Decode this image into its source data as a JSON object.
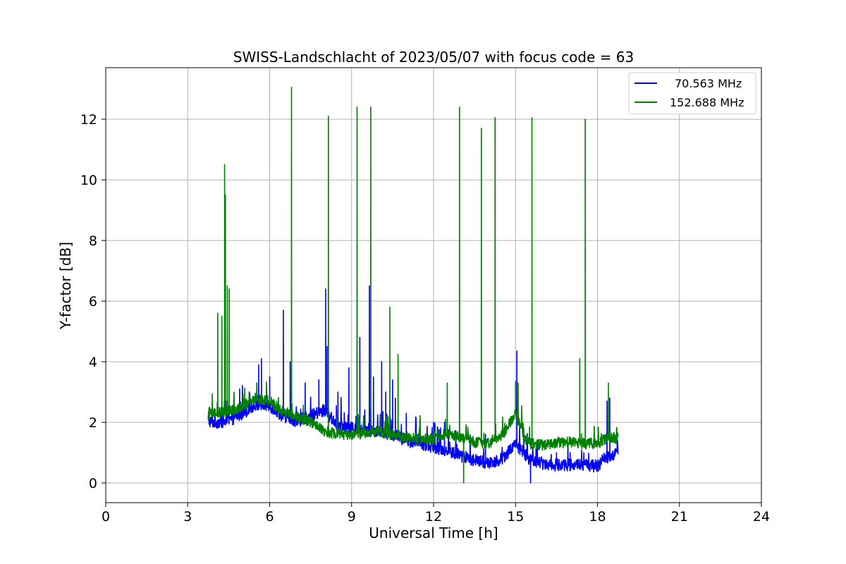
{
  "chart_data": {
    "type": "line",
    "title": "SWISS-Landschlacht of 2023/05/07 with focus code = 63",
    "xlabel": "Universal Time [h]",
    "ylabel": "Y-factor [dB]",
    "xlim": [
      0,
      24
    ],
    "ylim": [
      -0.65,
      13.7
    ],
    "xticks": [
      0,
      3,
      6,
      9,
      12,
      15,
      18,
      21,
      24
    ],
    "yticks": [
      0,
      2,
      4,
      6,
      8,
      10,
      12
    ],
    "grid": true,
    "legend_position": "top-right",
    "series": [
      {
        "name": "70.563 MHz",
        "color": "#0000ff",
        "baseline": [
          [
            3.75,
            2.05
          ],
          [
            4.0,
            2.0
          ],
          [
            4.5,
            2.05
          ],
          [
            5.0,
            2.3
          ],
          [
            5.5,
            2.6
          ],
          [
            6.0,
            2.55
          ],
          [
            6.5,
            2.2
          ],
          [
            7.0,
            2.05
          ],
          [
            7.5,
            2.2
          ],
          [
            8.0,
            2.4
          ],
          [
            8.5,
            1.9
          ],
          [
            9.0,
            1.8
          ],
          [
            9.5,
            1.8
          ],
          [
            10.0,
            1.7
          ],
          [
            10.5,
            1.6
          ],
          [
            11.0,
            1.4
          ],
          [
            11.5,
            1.3
          ],
          [
            12.0,
            1.2
          ],
          [
            12.5,
            1.05
          ],
          [
            13.0,
            0.9
          ],
          [
            13.5,
            0.75
          ],
          [
            14.0,
            0.65
          ],
          [
            14.5,
            0.8
          ],
          [
            15.0,
            1.3
          ],
          [
            15.5,
            0.8
          ],
          [
            16.0,
            0.65
          ],
          [
            16.5,
            0.6
          ],
          [
            17.0,
            0.6
          ],
          [
            17.5,
            0.6
          ],
          [
            18.0,
            0.55
          ],
          [
            18.3,
            0.85
          ],
          [
            18.75,
            1.0
          ]
        ],
        "noise": 0.35,
        "spikes": [
          [
            4.4,
            2.7
          ],
          [
            4.9,
            3.1
          ],
          [
            5.6,
            3.9
          ],
          [
            5.7,
            4.1
          ],
          [
            6.0,
            3.5
          ],
          [
            6.5,
            5.7
          ],
          [
            6.75,
            4.0
          ],
          [
            7.3,
            3.3
          ],
          [
            7.8,
            3.4
          ],
          [
            8.05,
            6.4
          ],
          [
            8.1,
            4.5
          ],
          [
            8.5,
            3.0
          ],
          [
            8.9,
            3.8
          ],
          [
            9.2,
            4.3
          ],
          [
            9.3,
            4.8
          ],
          [
            9.65,
            6.5
          ],
          [
            9.8,
            3.5
          ],
          [
            10.1,
            4.0
          ],
          [
            10.25,
            3.0
          ],
          [
            10.5,
            3.4
          ],
          [
            10.6,
            2.8
          ],
          [
            11.0,
            2.3
          ],
          [
            11.5,
            2.1
          ],
          [
            12.0,
            2.0
          ],
          [
            12.4,
            2.0
          ],
          [
            13.9,
            1.6
          ],
          [
            15.05,
            4.35
          ],
          [
            15.3,
            1.8
          ],
          [
            15.55,
            0.0
          ],
          [
            16.5,
            1.0
          ],
          [
            17.0,
            1.0
          ],
          [
            17.5,
            1.0
          ],
          [
            18.35,
            2.7
          ],
          [
            18.45,
            2.8
          ]
        ],
        "values_note": ""
      },
      {
        "name": "152.688 MHz",
        "color": "#008000",
        "baseline": [
          [
            3.75,
            2.25
          ],
          [
            4.0,
            2.3
          ],
          [
            4.5,
            2.35
          ],
          [
            5.0,
            2.55
          ],
          [
            5.5,
            2.8
          ],
          [
            6.0,
            2.7
          ],
          [
            6.5,
            2.35
          ],
          [
            7.0,
            2.2
          ],
          [
            7.5,
            2.0
          ],
          [
            8.0,
            1.7
          ],
          [
            8.5,
            1.6
          ],
          [
            9.0,
            1.6
          ],
          [
            9.5,
            1.65
          ],
          [
            10.0,
            1.7
          ],
          [
            10.5,
            1.6
          ],
          [
            11.0,
            1.5
          ],
          [
            11.5,
            1.45
          ],
          [
            12.0,
            1.45
          ],
          [
            12.5,
            1.65
          ],
          [
            13.0,
            1.5
          ],
          [
            13.5,
            1.35
          ],
          [
            14.0,
            1.3
          ],
          [
            14.5,
            1.55
          ],
          [
            15.0,
            2.3
          ],
          [
            15.3,
            1.55
          ],
          [
            15.5,
            1.3
          ],
          [
            16.0,
            1.25
          ],
          [
            16.5,
            1.3
          ],
          [
            17.0,
            1.35
          ],
          [
            17.5,
            1.3
          ],
          [
            18.0,
            1.3
          ],
          [
            18.4,
            1.5
          ],
          [
            18.75,
            1.45
          ]
        ],
        "noise": 0.3,
        "spikes": [
          [
            3.8,
            2.5
          ],
          [
            4.1,
            5.6
          ],
          [
            4.25,
            5.5
          ],
          [
            4.35,
            10.5
          ],
          [
            4.38,
            9.5
          ],
          [
            4.45,
            6.5
          ],
          [
            4.52,
            6.4
          ],
          [
            6.6,
            2.3
          ],
          [
            6.8,
            13.05
          ],
          [
            8.15,
            12.1
          ],
          [
            9.2,
            12.4
          ],
          [
            9.7,
            12.4
          ],
          [
            10.4,
            5.8
          ],
          [
            10.7,
            4.25
          ],
          [
            12.5,
            3.3
          ],
          [
            12.95,
            12.4
          ],
          [
            13.1,
            0.0
          ],
          [
            13.75,
            11.7
          ],
          [
            14.25,
            12.05
          ],
          [
            15.0,
            3.35
          ],
          [
            15.1,
            3.3
          ],
          [
            15.6,
            12.05
          ],
          [
            17.35,
            4.1
          ],
          [
            17.55,
            12.0
          ],
          [
            18.4,
            3.3
          ]
        ]
      }
    ]
  }
}
